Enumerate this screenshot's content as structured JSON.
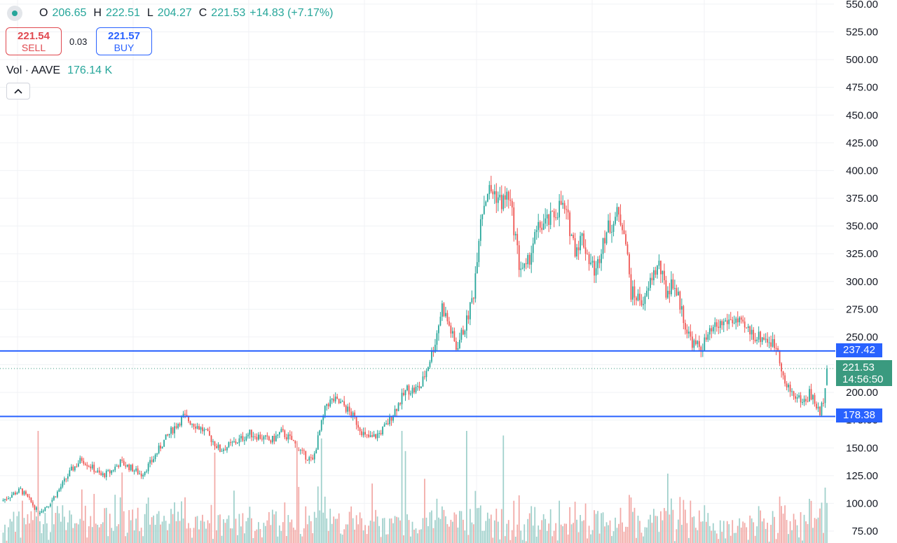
{
  "legend": {
    "open_label": "O",
    "open": "206.65",
    "high_label": "H",
    "high": "222.51",
    "low_label": "L",
    "low": "204.27",
    "close_label": "C",
    "close": "221.53",
    "change": "+14.83 (+7.17%)"
  },
  "trade": {
    "sell_price": "221.54",
    "sell_label": "SELL",
    "spread": "0.03",
    "buy_price": "221.57",
    "buy_label": "BUY"
  },
  "volume": {
    "label": "Vol · AAVE",
    "value": "176.14 K"
  },
  "price_tags": {
    "upper_line": "237.42",
    "lower_line": "178.38",
    "last_price": "221.53",
    "countdown": "14:56:50"
  },
  "colors": {
    "up": "#26a69a",
    "down": "#ef5350",
    "up_vol": "#9fd0cb",
    "down_vol": "#f2a9a6",
    "line": "#2962ff"
  },
  "chart_data": {
    "type": "candlestick",
    "y_ticks": [
      "550.00",
      "525.00",
      "500.00",
      "475.00",
      "450.00",
      "425.00",
      "400.00",
      "375.00",
      "350.00",
      "325.00",
      "300.00",
      "275.00",
      "250.00",
      "225.00",
      "200.00",
      "175.00",
      "150.00",
      "125.00",
      "100.00",
      "75.00"
    ],
    "ylim": [
      70,
      555
    ],
    "horizontal_lines": [
      237.42,
      178.38
    ],
    "last_price": 221.53,
    "anchors": [
      [
        0,
        102
      ],
      [
        6,
        108
      ],
      [
        11,
        112
      ],
      [
        16,
        103
      ],
      [
        21,
        92
      ],
      [
        27,
        99
      ],
      [
        32,
        110
      ],
      [
        36,
        120
      ],
      [
        40,
        130
      ],
      [
        46,
        140
      ],
      [
        52,
        132
      ],
      [
        57,
        125
      ],
      [
        62,
        128
      ],
      [
        68,
        137
      ],
      [
        74,
        132
      ],
      [
        80,
        126
      ],
      [
        86,
        138
      ],
      [
        92,
        154
      ],
      [
        98,
        167
      ],
      [
        104,
        178
      ],
      [
        110,
        172
      ],
      [
        116,
        165
      ],
      [
        120,
        158
      ],
      [
        125,
        148
      ],
      [
        130,
        152
      ],
      [
        136,
        157
      ],
      [
        142,
        163
      ],
      [
        148,
        160
      ],
      [
        154,
        156
      ],
      [
        160,
        164
      ],
      [
        166,
        157
      ],
      [
        172,
        145
      ],
      [
        178,
        138
      ],
      [
        182,
        165
      ],
      [
        186,
        190
      ],
      [
        190,
        193
      ],
      [
        196,
        188
      ],
      [
        202,
        176
      ],
      [
        208,
        160
      ],
      [
        212,
        159
      ],
      [
        216,
        163
      ],
      [
        220,
        170
      ],
      [
        226,
        187
      ],
      [
        232,
        203
      ],
      [
        236,
        202
      ],
      [
        240,
        206
      ],
      [
        244,
        225
      ],
      [
        248,
        246
      ],
      [
        252,
        278
      ],
      [
        256,
        260
      ],
      [
        260,
        240
      ],
      [
        266,
        264
      ],
      [
        270,
        290
      ],
      [
        274,
        360
      ],
      [
        278,
        382
      ],
      [
        282,
        380
      ],
      [
        286,
        371
      ],
      [
        290,
        378
      ],
      [
        294,
        340
      ],
      [
        296,
        315
      ],
      [
        300,
        310
      ],
      [
        304,
        335
      ],
      [
        308,
        350
      ],
      [
        314,
        355
      ],
      [
        320,
        370
      ],
      [
        324,
        355
      ],
      [
        328,
        330
      ],
      [
        332,
        340
      ],
      [
        336,
        320
      ],
      [
        340,
        308
      ],
      [
        344,
        340
      ],
      [
        348,
        350
      ],
      [
        352,
        360
      ],
      [
        356,
        350
      ],
      [
        360,
        290
      ],
      [
        364,
        285
      ],
      [
        368,
        282
      ],
      [
        372,
        305
      ],
      [
        376,
        315
      ],
      [
        380,
        290
      ],
      [
        384,
        300
      ],
      [
        388,
        280
      ],
      [
        392,
        255
      ],
      [
        396,
        243
      ],
      [
        400,
        240
      ],
      [
        404,
        250
      ],
      [
        408,
        258
      ],
      [
        412,
        262
      ],
      [
        416,
        265
      ],
      [
        420,
        265
      ],
      [
        424,
        258
      ],
      [
        428,
        255
      ],
      [
        432,
        250
      ],
      [
        436,
        250
      ],
      [
        440,
        245
      ],
      [
        444,
        240
      ],
      [
        448,
        206
      ],
      [
        452,
        200
      ],
      [
        456,
        194
      ],
      [
        460,
        192
      ],
      [
        462,
        200
      ],
      [
        466,
        188
      ],
      [
        468,
        180
      ],
      [
        470,
        195
      ],
      [
        472,
        221.53
      ]
    ]
  }
}
